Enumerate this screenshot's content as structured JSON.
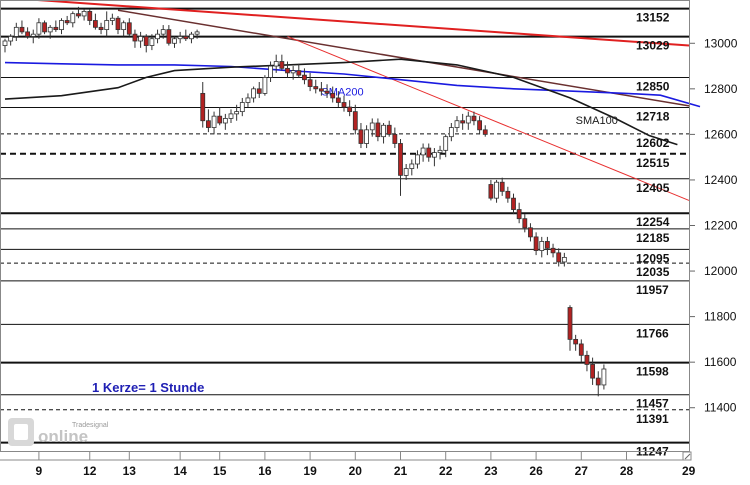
{
  "chart_data": {
    "type": "candlestick",
    "note": "1 Kerze= 1 Stunde",
    "watermark": "Tradesignal online",
    "y_axis_ticks": [
      11400,
      11600,
      11800,
      12000,
      12200,
      12400,
      12600,
      12800,
      13000
    ],
    "ylim": [
      11210,
      13190
    ],
    "x_axis_ticks": [
      {
        "label": "9",
        "bar": 6
      },
      {
        "label": "12",
        "bar": 15
      },
      {
        "label": "13",
        "bar": 22
      },
      {
        "label": "14",
        "bar": 31
      },
      {
        "label": "15",
        "bar": 38
      },
      {
        "label": "16",
        "bar": 46
      },
      {
        "label": "19",
        "bar": 54
      },
      {
        "label": "20",
        "bar": 62
      },
      {
        "label": "21",
        "bar": 70
      },
      {
        "label": "22",
        "bar": 78
      },
      {
        "label": "23",
        "bar": 86
      },
      {
        "label": "26",
        "bar": 94
      },
      {
        "label": "27",
        "bar": 102
      },
      {
        "label": "28",
        "bar": 110
      },
      {
        "label": "29",
        "bar": 121
      }
    ],
    "levels": [
      {
        "value": 13152,
        "label": "13152",
        "style": "solid",
        "weight": 2
      },
      {
        "value": 13029,
        "label": "13029",
        "style": "solid",
        "weight": 2
      },
      {
        "value": 12850,
        "label": "12850",
        "style": "solid",
        "weight": 1
      },
      {
        "value": 12718,
        "label": "12718",
        "style": "solid",
        "weight": 1
      },
      {
        "value": 12602,
        "label": "12602",
        "style": "dashed",
        "weight": 1
      },
      {
        "value": 12515,
        "label": "12515",
        "style": "dashed",
        "weight": 2
      },
      {
        "value": 12405,
        "label": "12405",
        "style": "solid",
        "weight": 1
      },
      {
        "value": 12254,
        "label": "12254",
        "style": "solid",
        "weight": 2
      },
      {
        "value": 12185,
        "label": "12185",
        "style": "solid",
        "weight": 1
      },
      {
        "value": 12095,
        "label": "12095",
        "style": "solid",
        "weight": 1
      },
      {
        "value": 12035,
        "label": "12035",
        "style": "dashed",
        "weight": 1
      },
      {
        "value": 11957,
        "label": "11957",
        "style": "solid",
        "weight": 1
      },
      {
        "value": 11766,
        "label": "11766",
        "style": "solid",
        "weight": 1
      },
      {
        "value": 11598,
        "label": "11598",
        "style": "solid",
        "weight": 2
      },
      {
        "value": 11457,
        "label": "11457",
        "style": "solid",
        "weight": 1
      },
      {
        "value": 11391,
        "label": "11391",
        "style": "dashed",
        "weight": 1
      },
      {
        "value": 11247,
        "label": "11247",
        "style": "solid",
        "weight": 2
      }
    ],
    "trendlines": [
      {
        "name": "upper-resistance",
        "color": "#e02020",
        "width": 2,
        "points": [
          [
            0,
            13200
          ],
          [
            136,
            12990
          ]
        ]
      },
      {
        "name": "falling-resistance",
        "color": "#6a3030",
        "width": 1.5,
        "points": [
          [
            20,
            13145
          ],
          [
            136,
            12725
          ]
        ]
      },
      {
        "name": "steep-downtrend",
        "color": "#e83030",
        "width": 1,
        "points": [
          [
            50,
            13030
          ],
          [
            136,
            12310
          ]
        ]
      }
    ],
    "moving_averages": [
      {
        "name": "SMA200",
        "label_bar": 56,
        "label_value": 12770,
        "color": "#1a1ae0",
        "points": [
          [
            0,
            12915
          ],
          [
            10,
            12910
          ],
          [
            20,
            12905
          ],
          [
            30,
            12905
          ],
          [
            40,
            12898
          ],
          [
            50,
            12880
          ],
          [
            60,
            12865
          ],
          [
            70,
            12840
          ],
          [
            80,
            12815
          ],
          [
            90,
            12800
          ],
          [
            100,
            12790
          ],
          [
            110,
            12780
          ],
          [
            116,
            12772
          ],
          [
            123,
            12722
          ]
        ]
      },
      {
        "name": "SMA100",
        "label_bar": 101,
        "label_value": 12645,
        "color": "#1a1a1a",
        "points": [
          [
            0,
            12755
          ],
          [
            10,
            12770
          ],
          [
            20,
            12805
          ],
          [
            25,
            12850
          ],
          [
            30,
            12880
          ],
          [
            40,
            12895
          ],
          [
            50,
            12905
          ],
          [
            60,
            12915
          ],
          [
            70,
            12930
          ],
          [
            80,
            12905
          ],
          [
            90,
            12850
          ],
          [
            100,
            12760
          ],
          [
            108,
            12670
          ],
          [
            114,
            12595
          ],
          [
            119,
            12555
          ]
        ]
      }
    ],
    "candles": [
      [
        12990,
        13020,
        12960,
        13010
      ],
      [
        13010,
        13040,
        12990,
        13030
      ],
      [
        13030,
        13090,
        13010,
        13070
      ],
      [
        13070,
        13100,
        13040,
        13050
      ],
      [
        13050,
        13070,
        13020,
        13030
      ],
      [
        13030,
        13060,
        13000,
        13040
      ],
      [
        13040,
        13110,
        13020,
        13090
      ],
      [
        13090,
        13100,
        13040,
        13050
      ],
      [
        13050,
        13080,
        13020,
        13070
      ],
      [
        13070,
        13100,
        13050,
        13060
      ],
      [
        13060,
        13110,
        13040,
        13100
      ],
      [
        13100,
        13120,
        13080,
        13090
      ],
      [
        13090,
        13140,
        13070,
        13130
      ],
      [
        13130,
        13160,
        13110,
        13120
      ],
      [
        13120,
        13150,
        13100,
        13140
      ],
      [
        13140,
        13150,
        13080,
        13100
      ],
      [
        13100,
        13130,
        13060,
        13070
      ],
      [
        13070,
        13090,
        13040,
        13060
      ],
      [
        13060,
        13140,
        13030,
        13100
      ],
      [
        13100,
        13130,
        13080,
        13110
      ],
      [
        13110,
        13120,
        13040,
        13060
      ],
      [
        13060,
        13100,
        13030,
        13090
      ],
      [
        13090,
        13110,
        13030,
        13040
      ],
      [
        13040,
        13060,
        12980,
        13010
      ],
      [
        13010,
        13050,
        12980,
        13030
      ],
      [
        13030,
        13040,
        12960,
        12990
      ],
      [
        12990,
        13040,
        12970,
        13020
      ],
      [
        13020,
        13060,
        13000,
        13040
      ],
      [
        13040,
        13080,
        13020,
        13060
      ],
      [
        13060,
        13080,
        12990,
        13000
      ],
      [
        13000,
        13030,
        12980,
        13020
      ],
      [
        13020,
        13050,
        13000,
        13030
      ],
      [
        13030,
        13060,
        13010,
        13020
      ],
      [
        13020,
        13050,
        13000,
        13040
      ],
      [
        13040,
        13060,
        13020,
        13050
      ],
      [
        12780,
        12830,
        12630,
        12660
      ],
      [
        12660,
        12710,
        12610,
        12630
      ],
      [
        12630,
        12700,
        12600,
        12680
      ],
      [
        12680,
        12720,
        12640,
        12650
      ],
      [
        12650,
        12690,
        12620,
        12670
      ],
      [
        12670,
        12710,
        12650,
        12690
      ],
      [
        12690,
        12730,
        12660,
        12700
      ],
      [
        12700,
        12760,
        12680,
        12740
      ],
      [
        12740,
        12780,
        12720,
        12760
      ],
      [
        12760,
        12810,
        12740,
        12800
      ],
      [
        12800,
        12830,
        12760,
        12780
      ],
      [
        12780,
        12860,
        12770,
        12850
      ],
      [
        12850,
        12920,
        12830,
        12900
      ],
      [
        12900,
        12950,
        12870,
        12920
      ],
      [
        12920,
        12950,
        12880,
        12890
      ],
      [
        12890,
        12920,
        12850,
        12870
      ],
      [
        12870,
        12900,
        12840,
        12880
      ],
      [
        12880,
        12910,
        12850,
        12860
      ],
      [
        12860,
        12890,
        12820,
        12840
      ],
      [
        12840,
        12870,
        12790,
        12810
      ],
      [
        12810,
        12840,
        12780,
        12800
      ],
      [
        12800,
        12830,
        12770,
        12790
      ],
      [
        12790,
        12820,
        12760,
        12780
      ],
      [
        12780,
        12810,
        12740,
        12760
      ],
      [
        12760,
        12790,
        12720,
        12740
      ],
      [
        12740,
        12770,
        12700,
        12720
      ],
      [
        12720,
        12750,
        12680,
        12700
      ],
      [
        12700,
        12730,
        12600,
        12620
      ],
      [
        12620,
        12650,
        12540,
        12560
      ],
      [
        12560,
        12640,
        12540,
        12620
      ],
      [
        12620,
        12670,
        12590,
        12650
      ],
      [
        12650,
        12670,
        12570,
        12590
      ],
      [
        12590,
        12650,
        12560,
        12640
      ],
      [
        12640,
        12660,
        12590,
        12600
      ],
      [
        12600,
        12630,
        12540,
        12560
      ],
      [
        12560,
        12580,
        12330,
        12420
      ],
      [
        12420,
        12470,
        12400,
        12450
      ],
      [
        12450,
        12490,
        12420,
        12470
      ],
      [
        12470,
        12530,
        12450,
        12510
      ],
      [
        12510,
        12560,
        12480,
        12540
      ],
      [
        12540,
        12560,
        12480,
        12500
      ],
      [
        12500,
        12540,
        12460,
        12520
      ],
      [
        12520,
        12550,
        12490,
        12530
      ],
      [
        12530,
        12600,
        12500,
        12590
      ],
      [
        12590,
        12650,
        12570,
        12630
      ],
      [
        12630,
        12680,
        12610,
        12660
      ],
      [
        12660,
        12690,
        12620,
        12650
      ],
      [
        12650,
        12700,
        12620,
        12680
      ],
      [
        12680,
        12700,
        12640,
        12660
      ],
      [
        12660,
        12680,
        12600,
        12620
      ],
      [
        12620,
        12640,
        12590,
        12600
      ],
      [
        12380,
        12400,
        12310,
        12320
      ],
      [
        12320,
        12400,
        12300,
        12390
      ],
      [
        12390,
        12410,
        12330,
        12350
      ],
      [
        12350,
        12370,
        12300,
        12320
      ],
      [
        12320,
        12340,
        12250,
        12270
      ],
      [
        12270,
        12300,
        12210,
        12230
      ],
      [
        12230,
        12250,
        12170,
        12190
      ],
      [
        12190,
        12210,
        12130,
        12150
      ],
      [
        12150,
        12170,
        12070,
        12090
      ],
      [
        12090,
        12150,
        12060,
        12130
      ],
      [
        12130,
        12150,
        12070,
        12100
      ],
      [
        12100,
        12120,
        12060,
        12080
      ],
      [
        12080,
        12100,
        12020,
        12040
      ],
      [
        12040,
        12080,
        12020,
        12060
      ],
      [
        11840,
        11850,
        11650,
        11700
      ],
      [
        11700,
        11720,
        11650,
        11680
      ],
      [
        11680,
        11700,
        11600,
        11630
      ],
      [
        11630,
        11650,
        11560,
        11590
      ],
      [
        11590,
        11620,
        11500,
        11530
      ],
      [
        11530,
        11560,
        11450,
        11500
      ],
      [
        11500,
        11590,
        11480,
        11570
      ]
    ]
  }
}
